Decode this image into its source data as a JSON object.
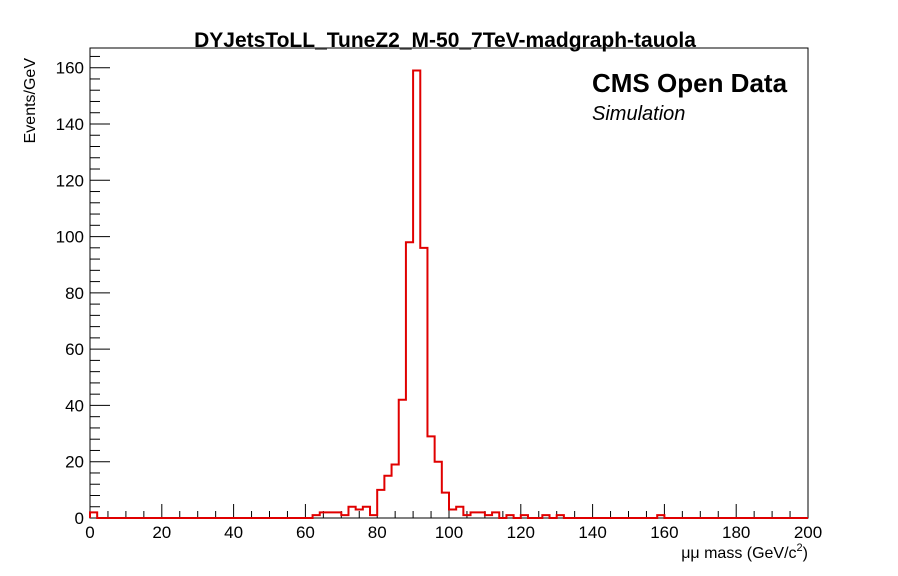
{
  "chart_data": {
    "type": "histogram",
    "title": "DYJetsToLL_TuneZ2_M-50_7TeV-madgraph-tauola",
    "xlabel_prefix": "μμ mass (GeV/c",
    "xlabel_sup": "2",
    "xlabel_suffix": ")",
    "ylabel": "Events/GeV",
    "annotation_main": "CMS Open Data",
    "annotation_sub": "Simulation",
    "xlim": [
      0,
      200
    ],
    "ylim": [
      0,
      167
    ],
    "x_ticks": [
      0,
      20,
      40,
      60,
      80,
      100,
      120,
      140,
      160,
      180,
      200
    ],
    "y_ticks": [
      0,
      20,
      40,
      60,
      80,
      100,
      120,
      140,
      160
    ],
    "bin_width": 2,
    "line_color": "#e00000",
    "values": [
      2,
      0,
      0,
      0,
      0,
      0,
      0,
      0,
      0,
      0,
      0,
      0,
      0,
      0,
      0,
      0,
      0,
      0,
      0,
      0,
      0,
      0,
      0,
      0,
      0,
      0,
      0,
      0,
      0,
      0,
      0,
      1,
      2,
      2,
      2,
      1,
      4,
      3,
      4,
      1,
      10,
      15,
      19,
      42,
      98,
      159,
      96,
      29,
      20,
      9,
      3,
      4,
      1,
      2,
      2,
      1,
      2,
      0,
      1,
      0,
      1,
      0,
      0,
      1,
      0,
      1,
      0,
      0,
      0,
      0,
      0,
      0,
      0,
      0,
      0,
      0,
      0,
      0,
      0,
      1,
      0,
      0,
      0,
      0,
      0,
      0,
      0,
      0,
      0,
      0,
      0,
      0,
      0,
      0,
      0,
      0,
      0,
      0,
      0,
      0
    ]
  }
}
